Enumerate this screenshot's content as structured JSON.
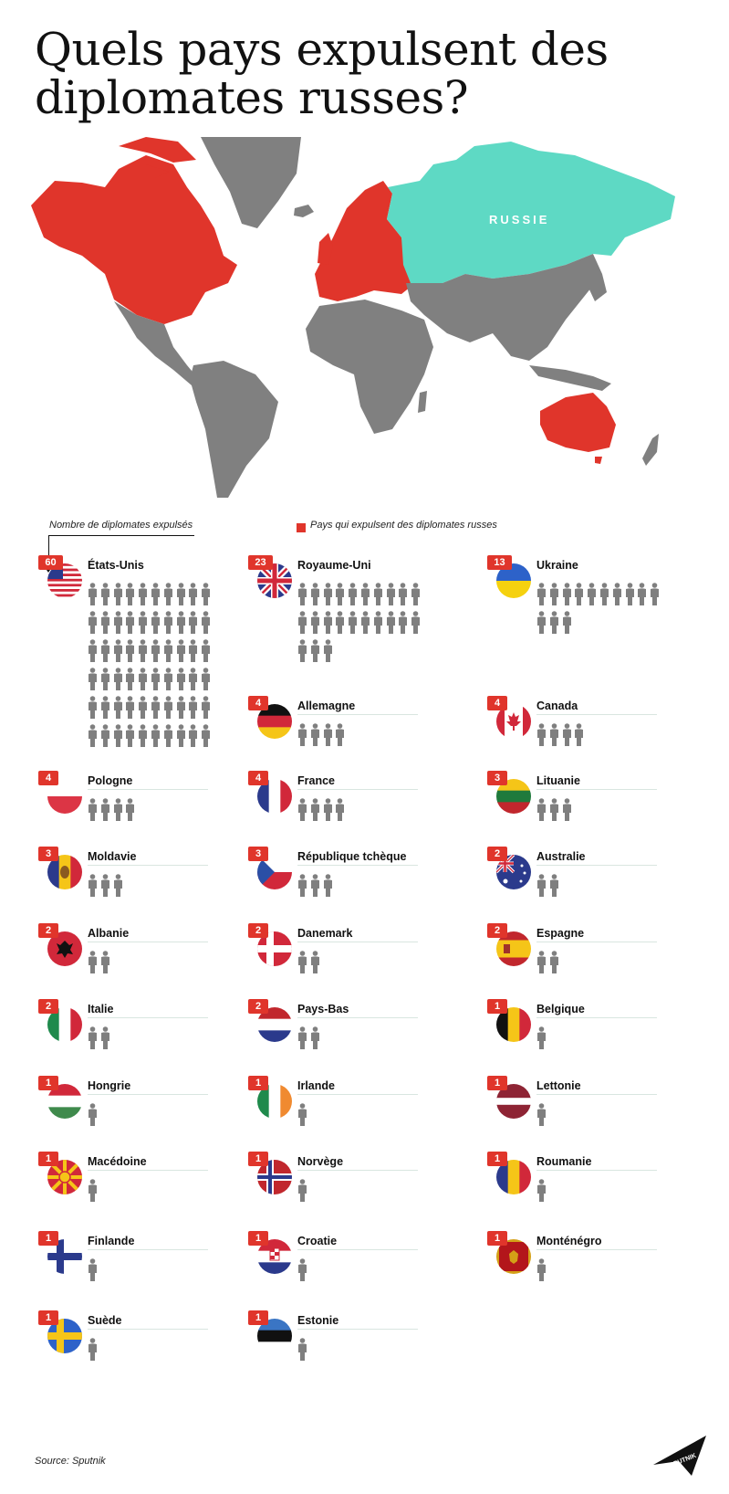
{
  "title_lines": [
    "Quels pays expulsent des",
    "diplomates russes?"
  ],
  "map": {
    "russia_label": "RUSSIE"
  },
  "legend": {
    "count_label": "Nombre de diplomates expulsés",
    "red_label": "Pays qui expulsent des diplomates russes"
  },
  "colors": {
    "expelling": "#e0352b",
    "russia": "#5ed9c4",
    "other": "#808080",
    "person": "#7f7f7f",
    "badge": "#e0352b"
  },
  "source": "Source: Sputnik",
  "logo_text": "SPUTNIK",
  "chart_data": {
    "type": "pictogram",
    "unit": "diplomates expulsés",
    "categories": [
      "États-Unis",
      "Royaume-Uni",
      "Ukraine",
      "Allemagne",
      "Canada",
      "Pologne",
      "France",
      "Lituanie",
      "Moldavie",
      "République tchèque",
      "Australie",
      "Albanie",
      "Danemark",
      "Espagne",
      "Italie",
      "Pays-Bas",
      "Belgique",
      "Hongrie",
      "Irlande",
      "Lettonie",
      "Macédoine",
      "Norvège",
      "Roumanie",
      "Finlande",
      "Croatie",
      "Monténégro",
      "Suède",
      "Estonie"
    ],
    "values": [
      60,
      23,
      13,
      4,
      4,
      4,
      4,
      3,
      3,
      3,
      2,
      2,
      2,
      2,
      2,
      2,
      1,
      1,
      1,
      1,
      1,
      1,
      1,
      1,
      1,
      1,
      1,
      1
    ],
    "flags": [
      "us",
      "gb",
      "ua",
      "de",
      "ca",
      "pl",
      "fr",
      "lt",
      "md",
      "cz",
      "au",
      "al",
      "dk",
      "es",
      "it",
      "nl",
      "be",
      "hu",
      "ie",
      "lv",
      "mk",
      "no",
      "ro",
      "fi",
      "hr",
      "me",
      "se",
      "ee"
    ]
  }
}
